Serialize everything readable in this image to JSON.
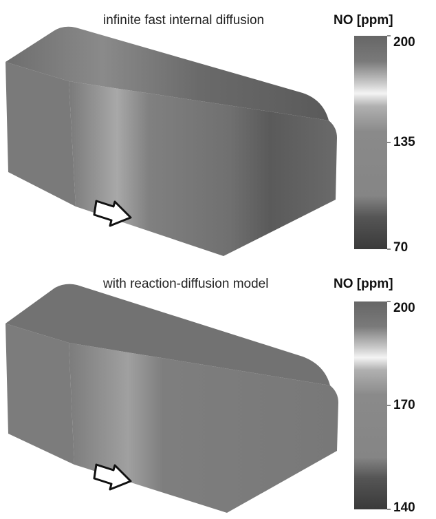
{
  "panels": [
    {
      "title": "infinite fast internal diffusion",
      "colorbar": {
        "label": "NO [ppm]",
        "lim": [
          70,
          200
        ],
        "ticks": [
          200,
          135,
          70
        ]
      }
    },
    {
      "title": "with reaction-diffusion model",
      "colorbar": {
        "label": "NO [ppm]",
        "lim": [
          140,
          200
        ],
        "ticks": [
          200,
          170,
          140
        ]
      }
    }
  ]
}
